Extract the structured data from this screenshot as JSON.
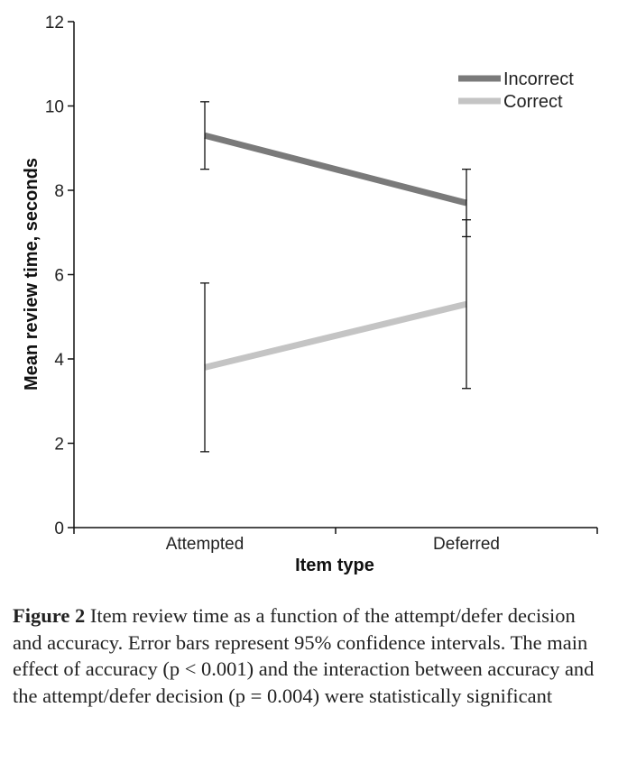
{
  "chart_data": {
    "type": "line",
    "xlabel": "Item type",
    "ylabel": "Mean review time, seconds",
    "categories": [
      "Attempted",
      "Deferred"
    ],
    "ylim": [
      0,
      12
    ],
    "yticks": [
      0,
      2,
      4,
      6,
      8,
      10,
      12
    ],
    "grid": false,
    "legend_position": "top-right",
    "series": [
      {
        "name": "Incorrect",
        "color": "#7a7a7a",
        "values": [
          9.3,
          7.7
        ],
        "error_low": [
          8.5,
          6.9
        ],
        "error_high": [
          10.1,
          8.5
        ]
      },
      {
        "name": "Correct",
        "color": "#c4c4c4",
        "values": [
          3.8,
          5.3
        ],
        "error_low": [
          1.8,
          3.3
        ],
        "error_high": [
          5.8,
          7.3
        ]
      }
    ]
  },
  "caption": {
    "label": "Figure 2",
    "text": "Item review time as a function of the attempt/defer decision and accuracy. Error bars represent 95% confidence intervals. The main effect of accuracy (p < 0.001) and the interaction between accuracy and the attempt/defer decision (p = 0.004) were statistically significant"
  }
}
